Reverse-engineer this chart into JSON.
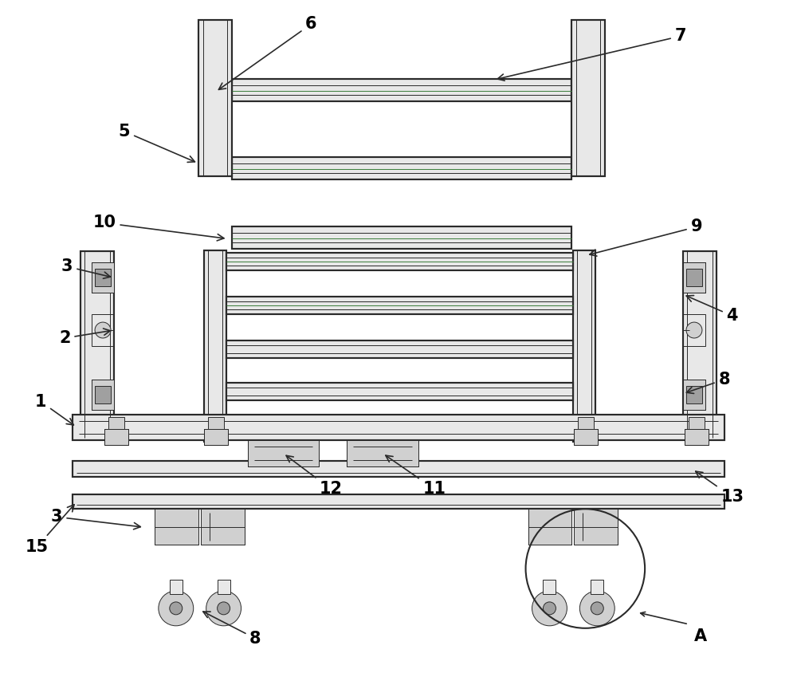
{
  "bg_color": "#ffffff",
  "line_color": "#2a2a2a",
  "lw_main": 1.5,
  "lw_thin": 0.7,
  "lw_thick": 2.2,
  "green_color": "#3a7d3a",
  "light_gray": "#e8e8e8",
  "mid_gray": "#d0d0d0",
  "dark_gray": "#a0a0a0"
}
